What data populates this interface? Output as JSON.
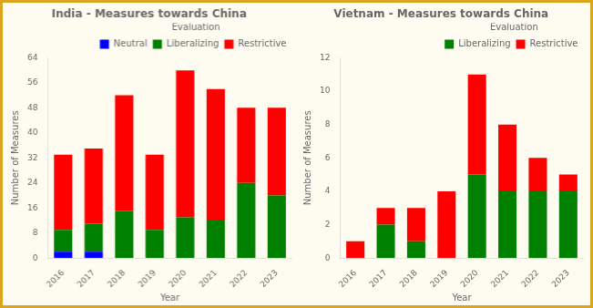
{
  "chart_data": [
    {
      "type": "bar",
      "title": "India - Measures towards China",
      "x_label": "Year",
      "y_label": "Number of Measures",
      "categories": [
        "2016",
        "2017",
        "2018",
        "2019",
        "2020",
        "2021",
        "2022",
        "2023"
      ],
      "series": [
        {
          "name": "Neutral",
          "color": "#0000FF",
          "values": [
            2,
            2,
            0,
            0,
            0,
            0,
            0,
            0
          ]
        },
        {
          "name": "Liberalizing",
          "color": "#008000",
          "values": [
            7,
            9,
            15,
            9,
            13,
            12,
            24,
            20
          ]
        },
        {
          "name": "Restrictive",
          "color": "#FF0000",
          "values": [
            24,
            24,
            37,
            24,
            47,
            42,
            24,
            28
          ]
        }
      ],
      "stacked": true,
      "ylim": [
        0,
        64
      ],
      "yticks": [
        0,
        8,
        16,
        24,
        32,
        40,
        48,
        56,
        64
      ],
      "grid": false,
      "legend": "upper right",
      "legend_title": "Evaluation"
    },
    {
      "type": "bar",
      "title": "Vietnam - Measures towards China",
      "x_label": "Year",
      "y_label": "Number of Measures",
      "categories": [
        "2016",
        "2017",
        "2018",
        "2019",
        "2020",
        "2021",
        "2022",
        "2023"
      ],
      "series": [
        {
          "name": "Liberalizing",
          "color": "#008000",
          "values": [
            0,
            2,
            1,
            0,
            5,
            4,
            4,
            4
          ]
        },
        {
          "name": "Restrictive",
          "color": "#FF0000",
          "values": [
            1,
            1,
            2,
            4,
            6,
            4,
            2,
            1
          ]
        }
      ],
      "stacked": true,
      "ylim": [
        0,
        12
      ],
      "yticks": [
        0,
        2,
        4,
        6,
        8,
        10,
        12
      ],
      "grid": false,
      "legend": "upper right",
      "legend_title": "Evaluation"
    }
  ]
}
